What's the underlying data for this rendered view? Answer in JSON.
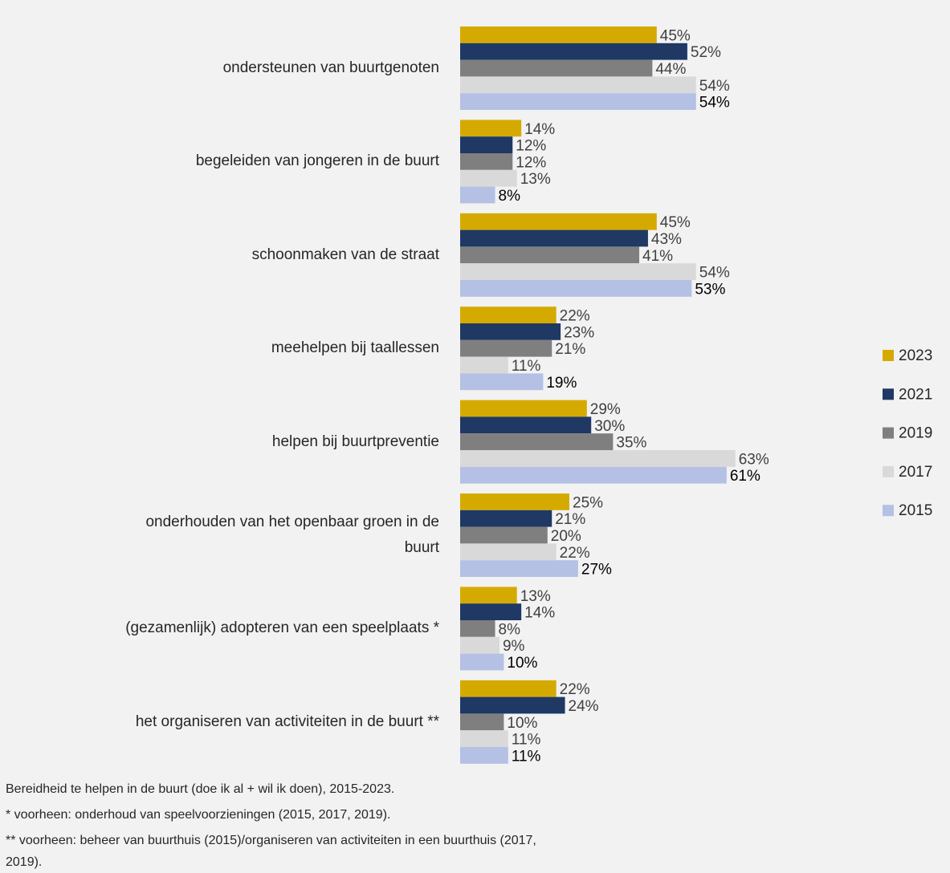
{
  "chart_data": {
    "type": "bar",
    "orientation": "horizontal",
    "categories": [
      "ondersteunen van buurtgenoten",
      "begeleiden van jongeren in de buurt",
      "schoonmaken van de straat",
      "meehelpen bij taallessen",
      "helpen bij buurtpreventie",
      "onderhouden van het openbaar groen in de\nbuurt",
      "(gezamenlijk) adopteren van een speelplaats *",
      "het organiseren van activiteiten in de buurt **"
    ],
    "series": [
      {
        "name": "2023",
        "color": "#d5aa00",
        "values": [
          45,
          14,
          45,
          22,
          29,
          25,
          13,
          22
        ],
        "value_labels": [
          "45%",
          "14%",
          "45%",
          "22%",
          "29%",
          "25%",
          "13%",
          "22%"
        ]
      },
      {
        "name": "2021",
        "color": "#1f3864",
        "values": [
          52,
          12,
          43,
          23,
          30,
          21,
          14,
          24
        ],
        "value_labels": [
          "52%",
          "12%",
          "43%",
          "23%",
          "30%",
          "21%",
          "14%",
          "24%"
        ]
      },
      {
        "name": "2019",
        "color": "#7f7f7f",
        "values": [
          44,
          12,
          41,
          21,
          35,
          20,
          8,
          10
        ],
        "value_labels": [
          "44%",
          "12%",
          "41%",
          "21%",
          "35%",
          "20%",
          "8%",
          "10%"
        ]
      },
      {
        "name": "2017",
        "color": "#d9d9d9",
        "values": [
          54,
          13,
          54,
          11,
          63,
          22,
          9,
          11
        ],
        "value_labels": [
          "54%",
          "13%",
          "54%",
          "11%",
          "63%",
          "22%",
          "9%",
          "11%"
        ]
      },
      {
        "name": "2015",
        "color": "#b4c1e5",
        "values": [
          54,
          8,
          53,
          19,
          61,
          27,
          10,
          11
        ],
        "value_labels": [
          "54%",
          "8%",
          "53%",
          "19%",
          "61%",
          "27%",
          "10%",
          "11%"
        ]
      }
    ],
    "legend": "right",
    "notes": [
      "Bereidheid te helpen in de buurt (doe ik al + wil ik doen), 2015-2023.",
      "* voorheen: onderhoud van speelvoorzieningen (2015, 2017, 2019).",
      "** voorheen: beheer van buurthuis (2015)/organiseren van activiteiten in een buurthuis (2017,\n2019)."
    ]
  }
}
